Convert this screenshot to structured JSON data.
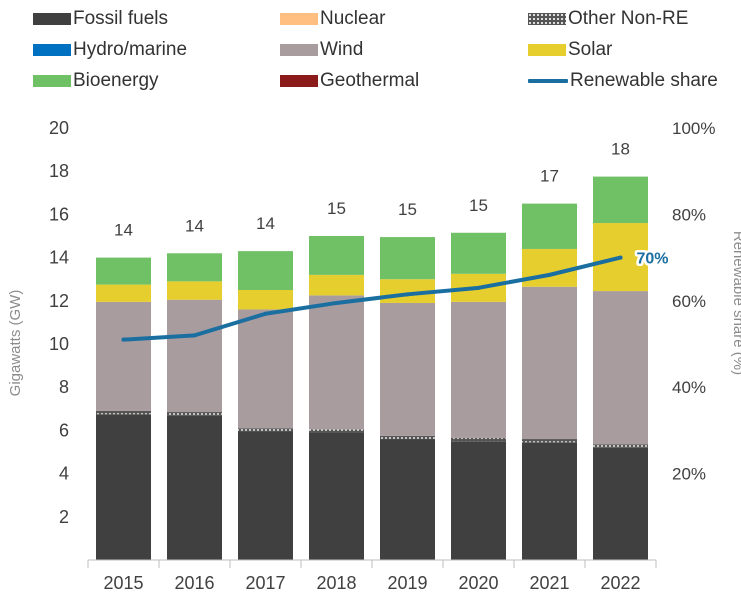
{
  "chart_data": {
    "type": "bar",
    "stacked": true,
    "categories": [
      "2015",
      "2016",
      "2017",
      "2018",
      "2019",
      "2020",
      "2021",
      "2022"
    ],
    "series": [
      {
        "name": "Fossil fuels",
        "color": "#404040",
        "values": [
          6.75,
          6.7,
          5.95,
          5.9,
          5.6,
          5.5,
          5.45,
          5.2
        ]
      },
      {
        "name": "Nuclear",
        "color": "#FFBF80",
        "values": [
          0,
          0,
          0,
          0,
          0,
          0,
          0,
          0
        ]
      },
      {
        "name": "Other Non-RE",
        "color": "#555555",
        "pattern": "dots",
        "values": [
          0.15,
          0.15,
          0.15,
          0.15,
          0.15,
          0.15,
          0.15,
          0.15
        ]
      },
      {
        "name": "Hydro/marine",
        "color": "#0070C0",
        "values": [
          0,
          0,
          0,
          0,
          0,
          0,
          0,
          0
        ]
      },
      {
        "name": "Wind",
        "color": "#A99C9F",
        "values": [
          5.05,
          5.2,
          5.5,
          6.2,
          6.15,
          6.3,
          7.05,
          7.1
        ]
      },
      {
        "name": "Solar",
        "color": "#E6CE2F",
        "values": [
          0.8,
          0.85,
          0.9,
          0.95,
          1.1,
          1.3,
          1.75,
          3.15
        ]
      },
      {
        "name": "Bioenergy",
        "color": "#70C065",
        "values": [
          1.25,
          1.3,
          1.8,
          1.8,
          1.95,
          1.9,
          2.1,
          2.15
        ]
      },
      {
        "name": "Geothermal",
        "color": "#8B1A1A",
        "values": [
          0,
          0,
          0,
          0,
          0,
          0,
          0,
          0
        ]
      }
    ],
    "line_series": {
      "name": "Renewable share",
      "color": "#1A6FA0",
      "axis": "right",
      "values": [
        0.51,
        0.52,
        0.57,
        0.595,
        0.615,
        0.63,
        0.66,
        0.7
      ]
    },
    "totals": [
      "14",
      "14",
      "14",
      "15",
      "15",
      "15",
      "17",
      "18"
    ],
    "end_label": "70%",
    "ylabel": "Gigawatts (GW)",
    "y2label": "Renewable share (%)",
    "ylim": [
      0,
      20
    ],
    "yticks": [
      "2",
      "4",
      "6",
      "8",
      "10",
      "12",
      "14",
      "16",
      "18",
      "20"
    ],
    "y2lim": [
      0,
      1
    ],
    "y2ticks": [
      "20%",
      "40%",
      "60%",
      "80%",
      "100%"
    ],
    "grid": false,
    "legend_position": "top"
  }
}
